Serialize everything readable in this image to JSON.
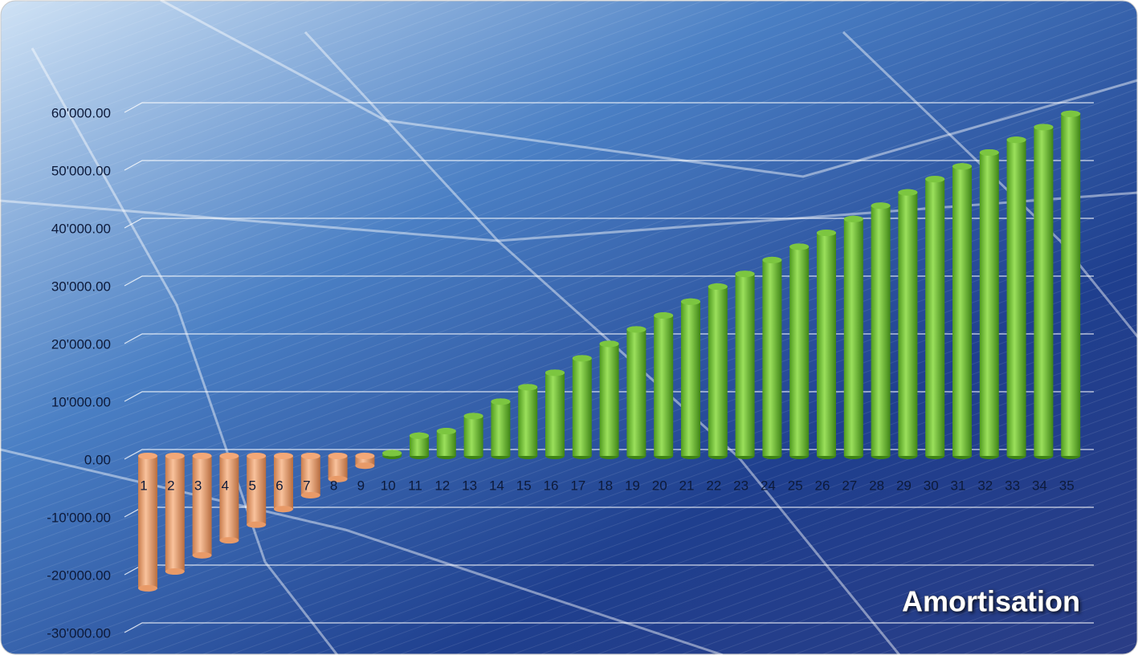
{
  "chart_data": {
    "type": "bar",
    "title": "Amortisation",
    "categories": [
      "1",
      "2",
      "3",
      "4",
      "5",
      "6",
      "7",
      "8",
      "9",
      "10",
      "11",
      "12",
      "13",
      "14",
      "15",
      "16",
      "17",
      "18",
      "19",
      "20",
      "21",
      "22",
      "23",
      "24",
      "25",
      "26",
      "27",
      "28",
      "29",
      "30",
      "31",
      "32",
      "33",
      "34",
      "35"
    ],
    "values": [
      -22900,
      -20000,
      -17200,
      -14600,
      -11900,
      -9200,
      -6800,
      -4000,
      -1700,
      500,
      3500,
      4300,
      6900,
      9400,
      11900,
      14400,
      16900,
      19400,
      21900,
      24300,
      26700,
      29300,
      31500,
      33900,
      36200,
      38600,
      41000,
      43300,
      45600,
      47900,
      50100,
      52500,
      54700,
      56900,
      59200
    ],
    "positive_color": "#7cc640",
    "negative_color": "#f3a878",
    "ylim": [
      -30000,
      60000
    ],
    "yticks": [
      {
        "value": -30000,
        "label": "-30'000.00"
      },
      {
        "value": -20000,
        "label": "-20'000.00"
      },
      {
        "value": -10000,
        "label": "-10'000.00"
      },
      {
        "value": 0,
        "label": "0.00"
      },
      {
        "value": 10000,
        "label": "10'000.00"
      },
      {
        "value": 20000,
        "label": "20'000.00"
      },
      {
        "value": 30000,
        "label": "30'000.00"
      },
      {
        "value": 40000,
        "label": "40'000.00"
      },
      {
        "value": 50000,
        "label": "50'000.00"
      },
      {
        "value": 60000,
        "label": "60'000.00"
      }
    ],
    "grid": true
  }
}
